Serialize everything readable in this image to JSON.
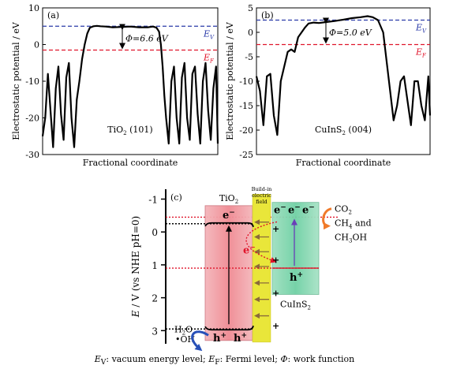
{
  "chart_data": [
    {
      "type": "line",
      "panel_label": "(a)",
      "material": "TiO",
      "material_sub": "2",
      "facet": " (101)",
      "xlabel": "Fractional coordinate",
      "ylabel": "Electrostatic potential / eV",
      "ylim": [
        -30,
        10
      ],
      "yticks": [
        10,
        0,
        -10,
        -20,
        -30
      ],
      "ev_value": 5.0,
      "ef_value": -1.5,
      "ev_label_main": "E",
      "ev_label_sub": "V",
      "ef_label_main": "E",
      "ef_label_sub": "F",
      "phi_label": "Φ=6.6 eV",
      "series": [
        {
          "x": [
            0,
            0.015,
            0.03,
            0.045,
            0.06,
            0.075,
            0.09,
            0.105,
            0.12,
            0.135,
            0.15,
            0.165,
            0.18,
            0.195,
            0.21,
            0.225,
            0.24,
            0.255,
            0.27,
            0.29,
            0.31,
            0.33,
            0.36,
            0.4,
            0.45,
            0.5,
            0.55,
            0.6,
            0.63,
            0.65,
            0.665,
            0.675,
            0.685,
            0.695,
            0.705,
            0.72,
            0.735,
            0.75,
            0.765,
            0.78,
            0.795,
            0.81,
            0.825,
            0.84,
            0.855,
            0.87,
            0.885,
            0.9,
            0.915,
            0.93,
            0.945,
            0.96,
            0.975,
            0.99,
            1.0
          ],
          "values": [
            -25,
            -20,
            -8,
            -18,
            -28,
            -12,
            -6,
            -19,
            -26,
            -9,
            -5,
            -20,
            -28,
            -15,
            -10,
            -4,
            0,
            3,
            4.6,
            5.0,
            5.1,
            5.0,
            4.9,
            4.7,
            4.8,
            4.9,
            4.7,
            4.7,
            4.9,
            4.6,
            3.5,
            0,
            -6,
            -14,
            -20,
            -27,
            -10,
            -6,
            -20,
            -27,
            -9,
            -5,
            -20,
            -26,
            -8,
            -6,
            -19,
            -27,
            -10,
            -5,
            -18,
            -26,
            -12,
            -6,
            -27
          ]
        }
      ]
    },
    {
      "type": "line",
      "panel_label": "(b)",
      "material": "CuInS",
      "material_sub": "2",
      "facet": " (004)",
      "xlabel": "Fractional coordinate",
      "ylabel": "Electrostatic potential / eV",
      "ylim": [
        -25,
        5
      ],
      "yticks": [
        5,
        0,
        -5,
        -10,
        -15,
        -20,
        -25
      ],
      "ev_value": 2.5,
      "ef_value": -2.5,
      "ev_label_main": "E",
      "ev_label_sub": "V",
      "ef_label_main": "E",
      "ef_label_sub": "F",
      "phi_label": "Φ=5.0 eV",
      "series": [
        {
          "x": [
            0,
            0.02,
            0.04,
            0.06,
            0.08,
            0.1,
            0.12,
            0.14,
            0.16,
            0.18,
            0.2,
            0.22,
            0.24,
            0.26,
            0.28,
            0.3,
            0.33,
            0.36,
            0.4,
            0.45,
            0.5,
            0.55,
            0.6,
            0.64,
            0.67,
            0.7,
            0.73,
            0.75,
            0.77,
            0.79,
            0.81,
            0.83,
            0.85,
            0.87,
            0.89,
            0.91,
            0.93,
            0.95,
            0.97,
            0.99,
            1.0
          ],
          "values": [
            -9,
            -12,
            -19,
            -9,
            -8.5,
            -17,
            -21,
            -10,
            -7,
            -4,
            -3.5,
            -4,
            -1,
            0,
            1,
            1.8,
            2.0,
            1.9,
            2.1,
            2.3,
            2.6,
            2.9,
            3.1,
            3.3,
            3.1,
            2.5,
            0,
            -6,
            -12,
            -18,
            -15,
            -10,
            -9,
            -14,
            -19,
            -10,
            -10,
            -15,
            -18,
            -9,
            -17
          ]
        }
      ]
    },
    {
      "type": "diagram",
      "panel_label": "(c)",
      "ylabel_main": "E",
      "ylabel_rest": " / V (vs NHE pH=0)",
      "ylim": [
        -1.3,
        3.4
      ],
      "yticks": [
        -1,
        0,
        1,
        2,
        3
      ],
      "tio2_label": "TiO",
      "tio2_sub": "2",
      "cuins2_label": "CuInS",
      "cuins2_sub": "2",
      "field_label_lines": [
        "Build-in",
        "electric",
        "field"
      ],
      "tio2_cb": -0.25,
      "tio2_vb": 2.95,
      "cuins2_cb": -0.45,
      "cuins2_vb": 1.1,
      "fermi_level": -0.45,
      "products": {
        "co2": "CO",
        "co2_sub": "2",
        "ch4": "CH",
        "ch4_sub": "4",
        "and": " and",
        "ch3oh": "CH",
        "ch3oh_sub": "3",
        "ch3oh_rest": "OH"
      },
      "h2o": {
        "main": "H",
        "sub": "2",
        "rest": "O"
      },
      "oh": "•OH",
      "electron": "e",
      "hole": "h",
      "plus": "+",
      "minus": "−"
    }
  ],
  "caption": {
    "ev_sym": "E",
    "ev_sub": "V",
    "ev_text": ": vacuum energy level; ",
    "ef_sym": "E",
    "ef_sub": "F",
    "ef_text": ": Fermi level; ",
    "phi_sym": "Φ",
    "phi_text": ": work function"
  }
}
